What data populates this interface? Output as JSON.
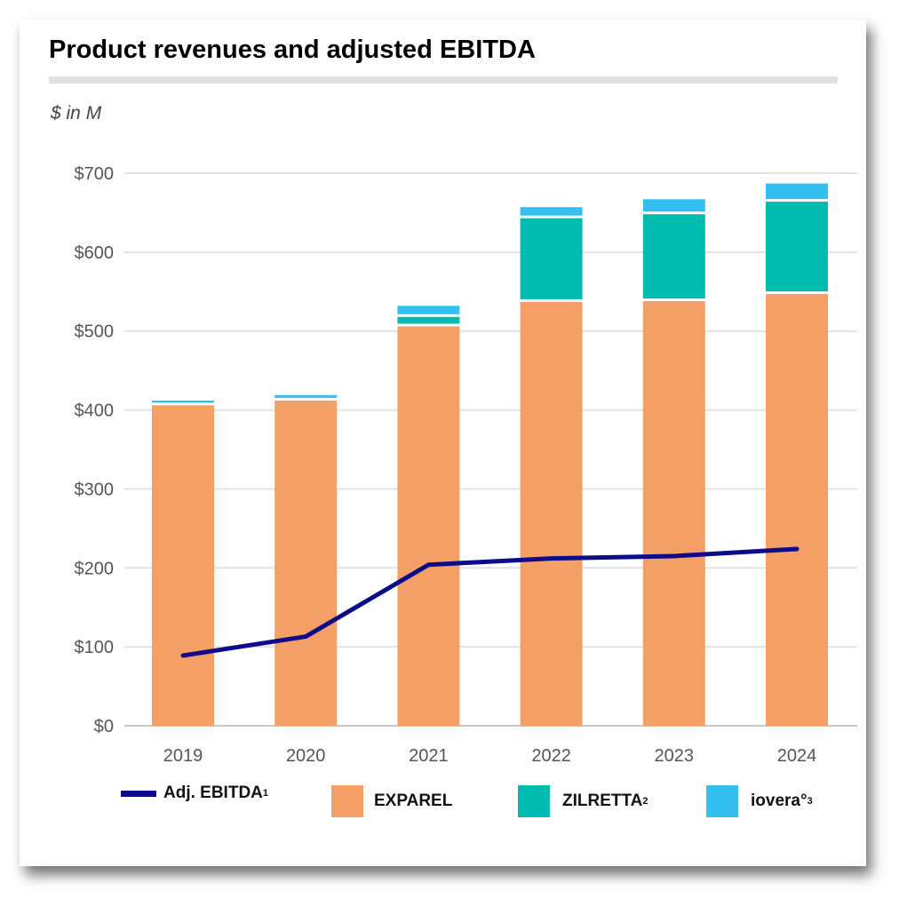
{
  "title": "Product revenues and adjusted EBITDA",
  "unit_label": "$ in M",
  "chart_data": {
    "type": "bar",
    "stacked": true,
    "categories": [
      "2019",
      "2020",
      "2021",
      "2022",
      "2023",
      "2024"
    ],
    "ylim": [
      0,
      700
    ],
    "yticks": [
      "$0",
      "$100",
      "$200",
      "$300",
      "$400",
      "$500",
      "$600",
      "$700"
    ],
    "grid": true,
    "legend_position": "bottom",
    "series": [
      {
        "name": "EXPAREL",
        "type": "bar",
        "color": "#f39f65",
        "values": [
          406,
          412,
          506,
          537,
          538,
          547
        ]
      },
      {
        "name": "ZILRETTA",
        "sup": "2",
        "type": "bar",
        "color": "#00bbaf",
        "values": [
          0,
          0,
          12,
          106,
          110,
          117
        ]
      },
      {
        "name": "iovera°",
        "sup": "3",
        "type": "bar",
        "color": "#33bff0",
        "values": [
          6,
          7,
          14,
          14,
          19,
          23
        ]
      },
      {
        "name": "Adj. EBITDA",
        "sup": "1",
        "type": "line",
        "color": "#0c0c8a",
        "values": [
          89,
          113,
          204,
          212,
          215,
          224
        ]
      }
    ]
  }
}
